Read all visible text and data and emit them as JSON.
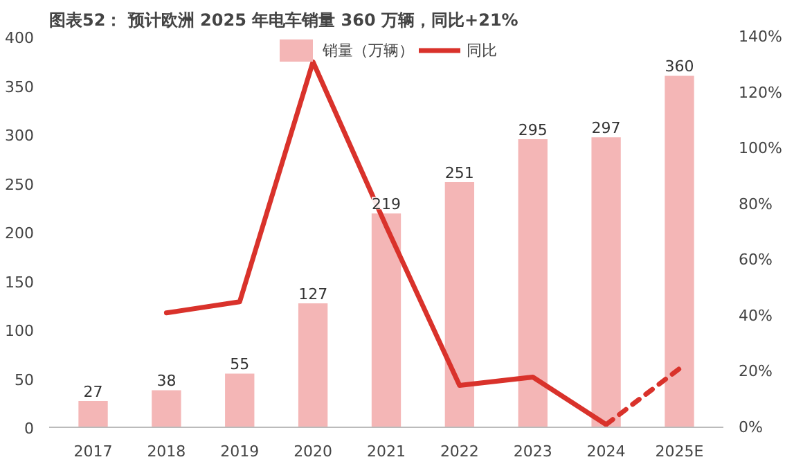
{
  "chart_data": {
    "type": "bar",
    "title": "图表52： 预计欧洲 2025 年电车销量 360 万辆，同比+21%",
    "categories": [
      "2017",
      "2018",
      "2019",
      "2020",
      "2021",
      "2022",
      "2023",
      "2024",
      "2025E"
    ],
    "series": [
      {
        "name": "销量（万辆）",
        "color": "#f4b6b6",
        "values": [
          27,
          38,
          55,
          127,
          219,
          251,
          295,
          297,
          360
        ],
        "data_labels": true
      },
      {
        "name": "同比",
        "type": "line",
        "color": "#d9322b",
        "axis": "y2",
        "line_style": "solid",
        "values": [
          null,
          41,
          45,
          131,
          72,
          15,
          18,
          1,
          null
        ]
      },
      {
        "type": "line",
        "color": "#d9322b",
        "axis": "y2",
        "line_style": "dashed",
        "values": [
          null,
          null,
          null,
          null,
          null,
          null,
          null,
          1,
          21
        ]
      }
    ],
    "ylim": [
      0,
      400
    ],
    "yticks": [
      0,
      50,
      100,
      150,
      200,
      250,
      300,
      350,
      400
    ],
    "y2lim": [
      0,
      140
    ],
    "y2ticks": [
      {
        "value": 0,
        "label": "0%"
      },
      {
        "value": 20,
        "label": "20%"
      },
      {
        "value": 40,
        "label": "40%"
      },
      {
        "value": 60,
        "label": "60%"
      },
      {
        "value": 80,
        "label": "80%"
      },
      {
        "value": 100,
        "label": "100%"
      },
      {
        "value": 120,
        "label": "120%"
      },
      {
        "value": 140,
        "label": "140%"
      }
    ],
    "grid": false,
    "legend": "top",
    "marker": "none"
  }
}
